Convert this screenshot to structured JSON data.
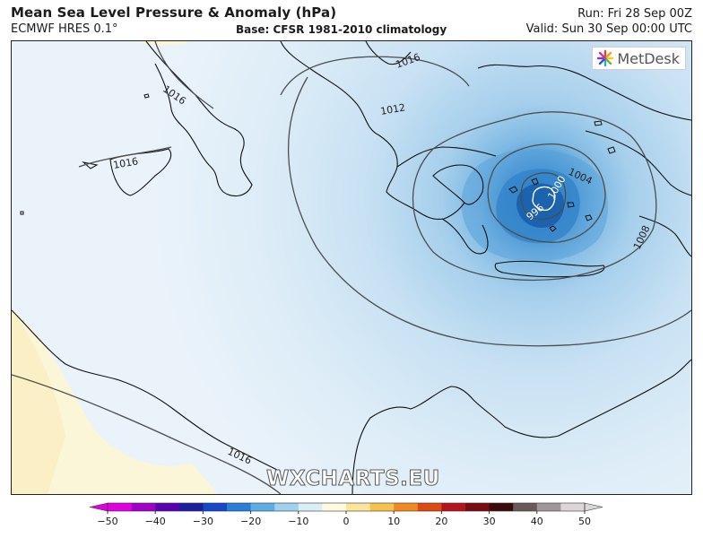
{
  "header": {
    "title": "Mean Sea Level Pressure & Anomaly (hPa)",
    "model": "ECMWF HRES 0.1°",
    "base": "Base: CFSR 1981-2010 climatology",
    "run": "Run: Fri 28 Sep 00Z",
    "valid": "Valid: Sun 30 Sep 00:00 UTC"
  },
  "logo": {
    "text": "MetDesk",
    "icon": "metdesk-star-icon"
  },
  "watermark": "WXCHARTS.EU",
  "isobars": {
    "labels": [
      "1016",
      "1016",
      "1016",
      "1016",
      "1012",
      "1008",
      "1004",
      "1000",
      "996"
    ]
  },
  "colorbar": {
    "ticks": [
      "−50",
      "−40",
      "−30",
      "−20",
      "−10",
      "0",
      "10",
      "20",
      "30",
      "40",
      "50"
    ],
    "colors": [
      "#e000e0",
      "#a000c8",
      "#5a00b0",
      "#1e1e9c",
      "#1448c8",
      "#2a7ed6",
      "#5aaee6",
      "#9fd0ef",
      "#dcedf8",
      "#fffbe0",
      "#fae69a",
      "#f4c34a",
      "#f08a1e",
      "#dc4a14",
      "#b4141e",
      "#7a0a14",
      "#3c0a0a",
      "#6a5a5a",
      "#a09898",
      "#dcd6d6"
    ]
  }
}
